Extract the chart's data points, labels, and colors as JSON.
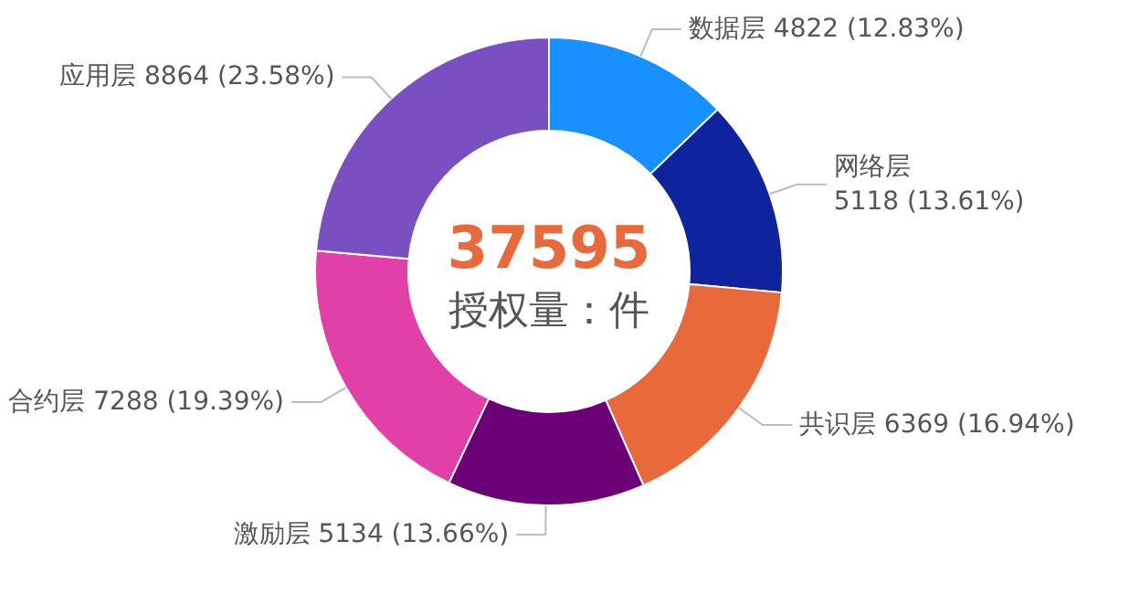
{
  "chart_data": {
    "type": "donut",
    "categories": [
      "数据层",
      "网络层",
      "共识层",
      "激励层",
      "合约层",
      "应用层"
    ],
    "values": [
      4822,
      5118,
      6369,
      5134,
      7288,
      8864
    ],
    "colors": [
      "#1890ff",
      "#10239e",
      "#e8693a",
      "#6b0077",
      "#e040a8",
      "#7a4fc2"
    ],
    "value_labels": [
      "4822 (12.83%)",
      "5118 (13.61%)",
      "6369 (16.94%)",
      "5134 (13.66%)",
      "7288 (19.39%)",
      "8864 (23.58%)"
    ],
    "annotations": [
      "37595",
      "授权量：件"
    ]
  }
}
